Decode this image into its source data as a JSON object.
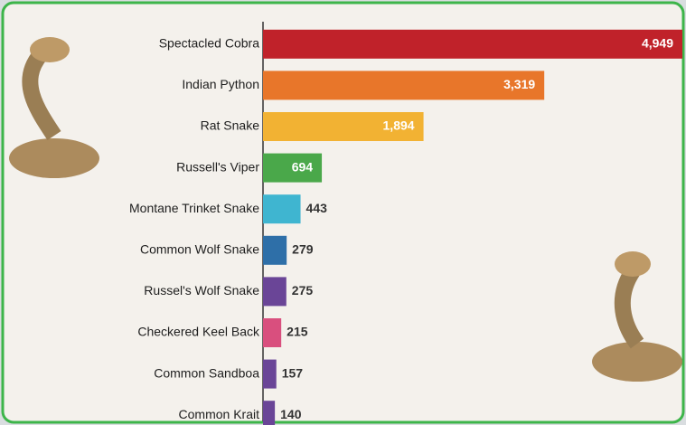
{
  "chart_data": {
    "type": "bar",
    "orientation": "horizontal",
    "categories": [
      "Spectacled Cobra",
      "Indian Python",
      "Rat Snake",
      "Russell's Viper",
      "Montane Trinket Snake",
      "Common Wolf Snake",
      "Russel's Wolf Snake",
      "Checkered Keel Back",
      "Common Sandboa",
      "Common Krait"
    ],
    "values": [
      4949,
      3319,
      1894,
      694,
      443,
      279,
      275,
      215,
      157,
      140
    ],
    "value_labels": [
      "4,949",
      "3,319",
      "1,894",
      "694",
      "443",
      "279",
      "275",
      "215",
      "157",
      "140"
    ],
    "colors": [
      "#c0222a",
      "#e8762a",
      "#f2b233",
      "#4aa84a",
      "#3fb5d0",
      "#2e6fa8",
      "#6a4597",
      "#d94f7e",
      "#6a4597",
      "#6a4597"
    ]
  }
}
